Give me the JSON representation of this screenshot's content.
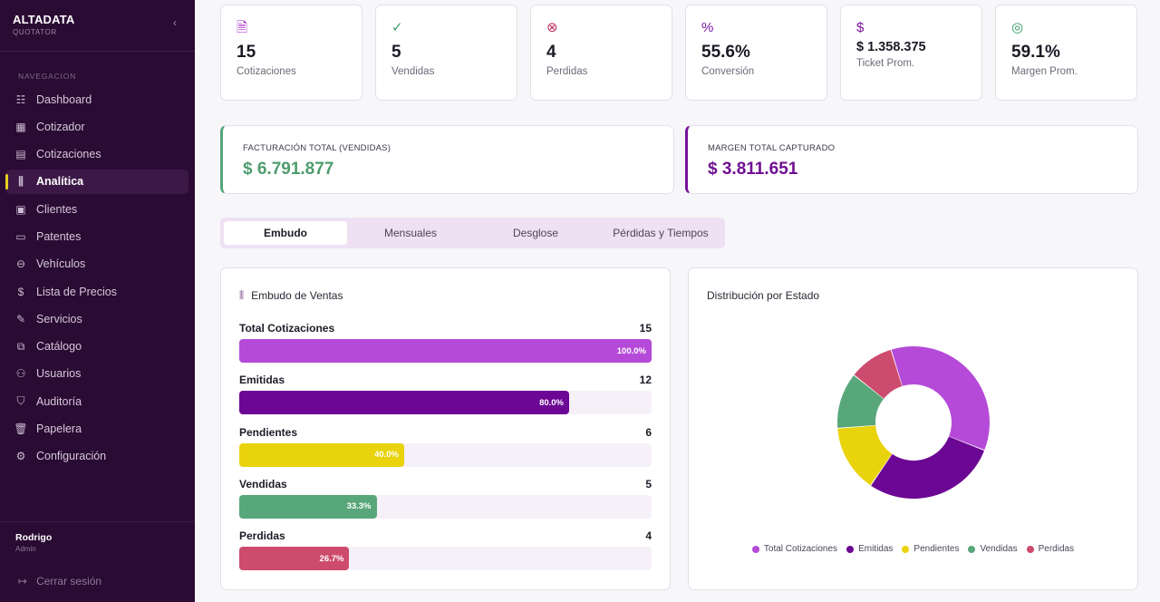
{
  "sidebar": {
    "brand": "ALTADATA",
    "brand_sub": "QUOTATOR",
    "collapse_icon": "chevron-left-icon",
    "section_label": "NAVEGACION",
    "items": [
      {
        "label": "Dashboard",
        "icon": "dashboard-icon",
        "glyph": "☷",
        "active": false
      },
      {
        "label": "Cotizador",
        "icon": "calculator-icon",
        "glyph": "▦",
        "active": false
      },
      {
        "label": "Cotizaciones",
        "icon": "file-icon",
        "glyph": "▤",
        "active": false
      },
      {
        "label": "Analítica",
        "icon": "bar-chart-icon",
        "glyph": "⫼",
        "active": true
      },
      {
        "label": "Clientes",
        "icon": "contact-card-icon",
        "glyph": "▣",
        "active": false
      },
      {
        "label": "Patentes",
        "icon": "plate-icon",
        "glyph": "▭",
        "active": false
      },
      {
        "label": "Vehículos",
        "icon": "car-icon",
        "glyph": "⊖",
        "active": false
      },
      {
        "label": "Lista de Precios",
        "icon": "dollar-icon",
        "glyph": "$",
        "active": false
      },
      {
        "label": "Servicios",
        "icon": "wrench-icon",
        "glyph": "✎",
        "active": false
      },
      {
        "label": "Catálogo",
        "icon": "book-icon",
        "glyph": "⧉",
        "active": false
      },
      {
        "label": "Usuarios",
        "icon": "users-icon",
        "glyph": "⚇",
        "active": false
      },
      {
        "label": "Auditoría",
        "icon": "shield-check-icon",
        "glyph": "⛉",
        "active": false
      },
      {
        "label": "Papelera",
        "icon": "trash-icon",
        "glyph": "🗑",
        "active": false
      },
      {
        "label": "Configuración",
        "icon": "gear-icon",
        "glyph": "⚙",
        "active": false
      }
    ],
    "user": {
      "name": "Rodrigo",
      "role": "Admin"
    },
    "logout": "Cerrar sesión"
  },
  "kpis": [
    {
      "value": "15",
      "label": "Cotizaciones",
      "icon": "file-text-icon",
      "glyph": "🗎",
      "color": "#a020c0"
    },
    {
      "value": "5",
      "label": "Vendidas",
      "icon": "check-circle-icon",
      "glyph": "✓",
      "color": "#3c9d64"
    },
    {
      "value": "4",
      "label": "Perdidas",
      "icon": "x-circle-icon",
      "glyph": "⊗",
      "color": "#c22d60"
    },
    {
      "value": "55.6%",
      "label": "Conversión",
      "icon": "percent-icon",
      "glyph": "%",
      "color": "#7a149c"
    },
    {
      "value": "$ 1.358.375",
      "label": "Ticket Prom.",
      "icon": "dollar-icon",
      "glyph": "$",
      "color": "#7a149c"
    },
    {
      "value": "59.1%",
      "label": "Margen Prom.",
      "icon": "target-icon",
      "glyph": "◎",
      "color": "#2e9a59"
    }
  ],
  "totals": {
    "facturacion": {
      "label": "FACTURACIÓN TOTAL (VENDIDAS)",
      "value": "$ 6.791.877",
      "color": "#4f9c6e"
    },
    "margen": {
      "label": "MARGEN TOTAL CAPTURADO",
      "value": "$ 3.811.651",
      "color": "#6f0f93"
    }
  },
  "tabs": [
    {
      "label": "Embudo",
      "active": true
    },
    {
      "label": "Mensuales",
      "active": false
    },
    {
      "label": "Desglose",
      "active": false
    },
    {
      "label": "Pérdidas y Tiempos",
      "active": false
    }
  ],
  "funnel": {
    "title": "Embudo de Ventas",
    "icon": "bar-chart-icon",
    "rows": [
      {
        "label": "Total Cotizaciones",
        "count": "15",
        "pct_label": "100.0%",
        "fraction": 1.0,
        "color": "#b54ad8"
      },
      {
        "label": "Emitidas",
        "count": "12",
        "pct_label": "80.0%",
        "fraction": 0.8,
        "color": "#6c0694"
      },
      {
        "label": "Pendientes",
        "count": "6",
        "pct_label": "40.0%",
        "fraction": 0.4,
        "color": "#e9d30c"
      },
      {
        "label": "Vendidas",
        "count": "5",
        "pct_label": "33.3%",
        "fraction": 0.333,
        "color": "#58a77a"
      },
      {
        "label": "Perdidas",
        "count": "4",
        "pct_label": "26.7%",
        "fraction": 0.267,
        "color": "#cd4b6c"
      }
    ]
  },
  "chart_data": {
    "type": "pie",
    "title": "Distribución por Estado",
    "categories": [
      "Total Cotizaciones",
      "Emitidas",
      "Pendientes",
      "Vendidas",
      "Perdidas"
    ],
    "values": [
      15,
      12,
      6,
      5,
      4
    ],
    "colors": [
      "#b54ad8",
      "#6c0694",
      "#e9d30c",
      "#58a77a",
      "#cd4b6c"
    ],
    "donut": true,
    "legend": "bottom"
  }
}
